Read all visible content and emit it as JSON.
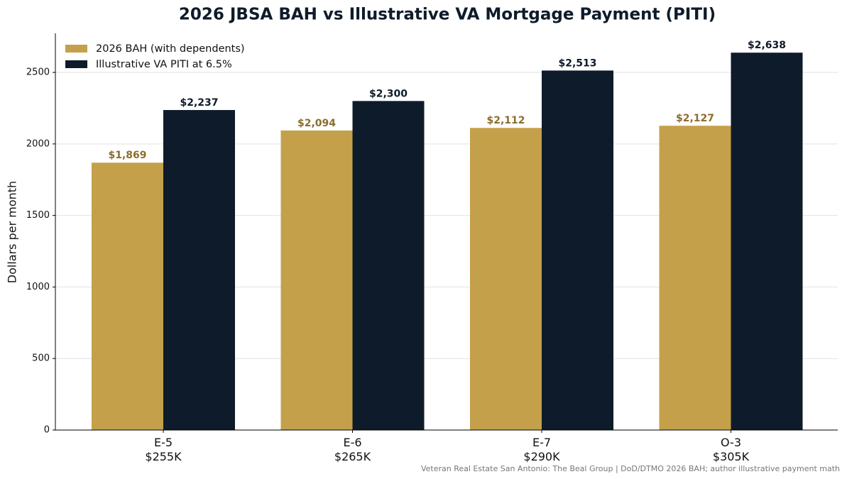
{
  "chart_data": {
    "type": "bar",
    "title": "2026 JBSA BAH vs Illustrative VA Mortgage Payment (PITI)",
    "y_label": "Dollars per month",
    "source": "Veteran Real Estate San Antonio: The Beal Group | DoD/DTMO 2026 BAH; author illustrative payment math",
    "categories": [
      "E-5\n$255K",
      "E-6\n$265K",
      "E-7\n$290K",
      "O-3\n$305K"
    ],
    "series": [
      {
        "name": "2026 BAH (with dependents)",
        "color": "#c4a04b",
        "label_color": "#8c6d2c",
        "values": [
          1869,
          2094,
          2112,
          2127
        ],
        "value_labels": [
          "$1,869",
          "$2,094",
          "$2,112",
          "$2,127"
        ]
      },
      {
        "name": "Illustrative VA PITI at 6.5%",
        "color": "#0e1b2a",
        "label_color": "#0e1b2a",
        "values": [
          2237,
          2300,
          2513,
          2638
        ],
        "value_labels": [
          "$2,237",
          "$2,300",
          "$2,513",
          "$2,638"
        ]
      }
    ],
    "ylim": [
      0,
      2773
    ],
    "yticks": [
      0,
      500,
      1000,
      1500,
      2000,
      2500
    ],
    "grid": true,
    "legend": "upper left"
  }
}
